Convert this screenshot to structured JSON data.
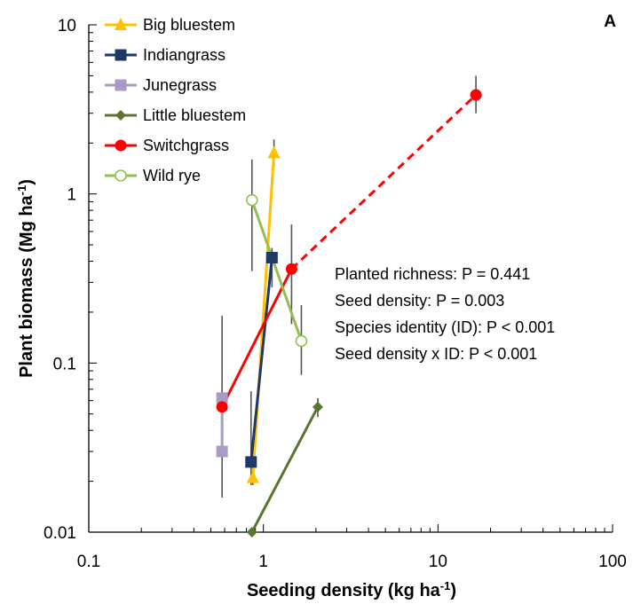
{
  "panel_label": "A",
  "annotations": [
    "Planted richness: P = 0.441",
    "Seed density: P = 0.003",
    "Species identity (ID): P < 0.001",
    "Seed density x ID: P < 0.001"
  ],
  "chart_data": {
    "type": "line",
    "xlabel": "Seeding density (kg ha",
    "xlabel_sup": "-1",
    "xlabel_end": ")",
    "ylabel": "Plant biomass (Mg ha",
    "ylabel_sup": "-1",
    "ylabel_end": ")",
    "x_scale": "log",
    "y_scale": "log",
    "xlim": [
      0.1,
      100
    ],
    "ylim": [
      0.01,
      10
    ],
    "x_ticks": [
      {
        "value": 0.1,
        "label": "0.1"
      },
      {
        "value": 1,
        "label": "1"
      },
      {
        "value": 10,
        "label": "10"
      },
      {
        "value": 100,
        "label": "100"
      }
    ],
    "y_ticks": [
      {
        "value": 0.01,
        "label": "0.01"
      },
      {
        "value": 0.1,
        "label": "0.1"
      },
      {
        "value": 1,
        "label": "1"
      },
      {
        "value": 10,
        "label": "10"
      }
    ],
    "legend_position": "top-left",
    "grid": false,
    "series": [
      {
        "name": "Big bluestem",
        "color": "#FFC000",
        "marker": "triangle",
        "points": [
          {
            "x": 0.87,
            "y": 0.021,
            "err_lo": 0.019,
            "err_hi": 0.024
          },
          {
            "x": 1.15,
            "y": 1.75,
            "err_lo": 1.45,
            "err_hi": 2.1
          }
        ]
      },
      {
        "name": "Indiangrass",
        "color": "#1F3864",
        "marker": "square",
        "points": [
          {
            "x": 0.85,
            "y": 0.026,
            "err_lo": 0.019,
            "err_hi": 0.068
          },
          {
            "x": 1.12,
            "y": 0.42,
            "err_lo": 0.28,
            "err_hi": 0.48
          }
        ]
      },
      {
        "name": "Junegrass",
        "color": "#A99BC5",
        "marker": "square",
        "points": [
          {
            "x": 0.58,
            "y": 0.062,
            "err_lo": 0.045,
            "err_hi": 0.064
          },
          {
            "x": 0.58,
            "y": 0.03,
            "err_lo": 0.028,
            "err_hi": 0.032
          }
        ]
      },
      {
        "name": "Little bluestem",
        "color": "#5A7431",
        "marker": "diamond",
        "points": [
          {
            "x": 0.86,
            "y": 0.01,
            "err_lo": 0.01,
            "err_hi": 0.01
          },
          {
            "x": 2.05,
            "y": 0.055,
            "err_lo": 0.048,
            "err_hi": 0.062
          }
        ]
      },
      {
        "name": "Switchgrass",
        "color": "#FF0000",
        "marker": "circle",
        "points": [
          {
            "x": 0.58,
            "y": 0.055,
            "err_lo": 0.016,
            "err_hi": 0.19
          },
          {
            "x": 1.45,
            "y": 0.36,
            "err_lo": 0.17,
            "err_hi": 0.66
          },
          {
            "x": 16.5,
            "y": 3.85,
            "err_lo": 3.0,
            "err_hi": 5.0
          }
        ],
        "dashed_from_index": 1
      },
      {
        "name": "Wild rye",
        "color": "#92C050",
        "marker": "open-circle",
        "points": [
          {
            "x": 0.86,
            "y": 0.92,
            "err_lo": 0.35,
            "err_hi": 1.6
          },
          {
            "x": 1.65,
            "y": 0.135,
            "err_lo": 0.085,
            "err_hi": 0.22
          }
        ]
      }
    ]
  }
}
